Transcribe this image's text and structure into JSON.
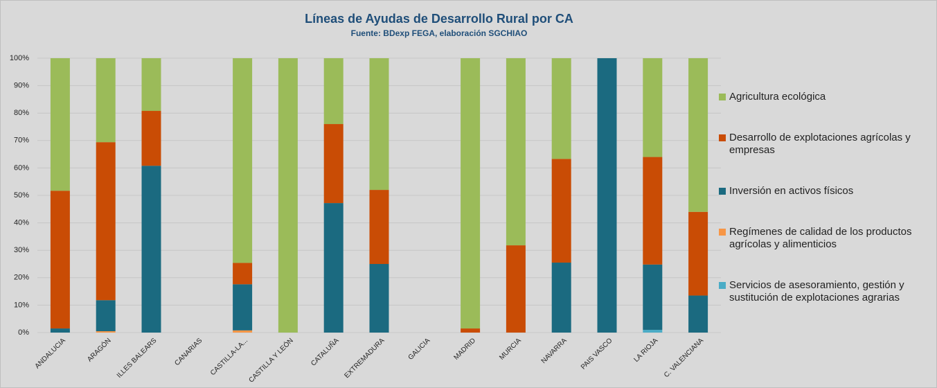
{
  "chart_data": {
    "type": "stacked_bar",
    "title": "Líneas de Ayudas de Desarrollo Rural por CA",
    "subtitle": "Fuente: BDexp FEGA, elaboración SGCHIAO",
    "categories": [
      "ANDALUCIA",
      "ARAGÓN",
      "ILLES BALEARS",
      "CANARIAS",
      "CASTILLA-LA...",
      "CASTILLA Y LEÓN",
      "CATALUÑA",
      "EXTREMADURA",
      "GALICIA",
      "MADRID",
      "MURCIA",
      "NAVARRA",
      "PAIS VASCO",
      "LA RIOJA",
      "C. VALENCIANA"
    ],
    "series": [
      {
        "name": "Servicios de asesoramiento, gestión y sustitución de explotaciones agrarias",
        "color": "#4bacc6",
        "values": [
          0,
          0,
          0,
          0,
          0,
          0,
          0,
          0,
          0,
          0,
          0,
          0,
          0,
          1,
          0
        ]
      },
      {
        "name": "Regímenes de calidad de los productos agrícolas y alimenticios",
        "color": "#f79646",
        "values": [
          0,
          0.5,
          0,
          0,
          0.8,
          0,
          0,
          0,
          0,
          0,
          0,
          0,
          0,
          0,
          0
        ]
      },
      {
        "name": "Inversión en activos físicos",
        "color": "#1b6a80",
        "values": [
          1.5,
          11.3,
          60.8,
          0,
          16.8,
          0,
          47.2,
          25,
          0,
          0,
          0,
          25.5,
          100,
          23.8,
          13.5
        ]
      },
      {
        "name": "Desarrollo de explotaciones agrícolas y empresas",
        "color": "#c94c05",
        "values": [
          50.2,
          57.6,
          20,
          0,
          7.8,
          0,
          28.8,
          27,
          0,
          1.5,
          31.8,
          37.8,
          0,
          39.2,
          30.5
        ]
      },
      {
        "name": "Agricultura ecológica",
        "color": "#9bbb59",
        "values": [
          48.3,
          30.6,
          19.2,
          0,
          74.6,
          100,
          24,
          48,
          0,
          98.5,
          68.2,
          36.7,
          0,
          36,
          56
        ]
      }
    ],
    "ylim": [
      0,
      100
    ],
    "yticks": [
      {
        "value": 0,
        "label": "0%"
      },
      {
        "value": 10,
        "label": "10%"
      },
      {
        "value": 20,
        "label": "20%"
      },
      {
        "value": 30,
        "label": "30%"
      },
      {
        "value": 40,
        "label": "40%"
      },
      {
        "value": 50,
        "label": "50%"
      },
      {
        "value": 60,
        "label": "60%"
      },
      {
        "value": 70,
        "label": "70%"
      },
      {
        "value": 80,
        "label": "80%"
      },
      {
        "value": 90,
        "label": "90%"
      },
      {
        "value": 100,
        "label": "100%"
      }
    ],
    "grid": true,
    "legend": "right"
  }
}
